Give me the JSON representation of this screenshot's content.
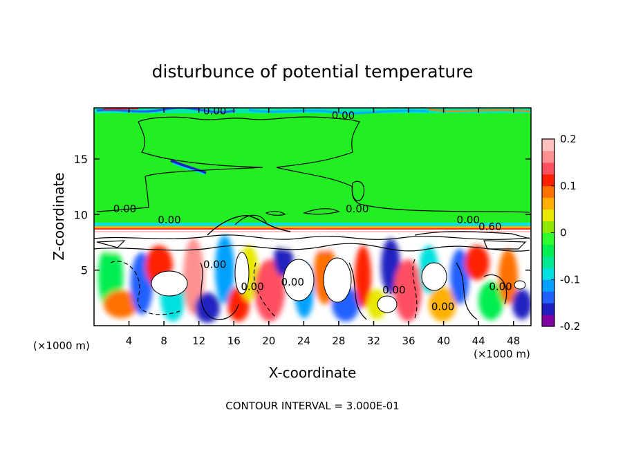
{
  "chart_data": {
    "type": "heatmap",
    "title": "disturbunce of potential temperature",
    "xlabel": "X-coordinate",
    "ylabel": "Z-coordinate",
    "x_unit": "(×1000 m)",
    "x_unit_right": "(×1000 m)",
    "footer": "CONTOUR INTERVAL = 3.000E-01",
    "xlim": [
      0,
      50
    ],
    "ylim": [
      0,
      19.6
    ],
    "x_ticks": [
      "4",
      "8",
      "12",
      "16",
      "20",
      "24",
      "28",
      "32",
      "36",
      "40",
      "44",
      "48"
    ],
    "y_ticks": [
      "5",
      "10",
      "15"
    ],
    "colorbar": {
      "min": -0.2,
      "max": 0.2,
      "tick_labels": [
        "0.2",
        "0.1",
        "0",
        "-0.1",
        "-0.2"
      ],
      "colors": [
        "#8000a0",
        "#2020c0",
        "#2060ff",
        "#00a0ff",
        "#00e0e0",
        "#00e890",
        "#00ee50",
        "#30ff30",
        "#90e800",
        "#e8e800",
        "#ffb000",
        "#ff7000",
        "#ff2000",
        "#ff5060",
        "#ff9090",
        "#ffc0c0"
      ]
    },
    "contour_labels": [
      {
        "text": "0.00",
        "x": 12.5,
        "z": 19.0
      },
      {
        "text": "0.00",
        "x": 27.2,
        "z": 18.6
      },
      {
        "text": "0.00",
        "x": 2.2,
        "z": 10.2
      },
      {
        "text": "0.00",
        "x": 28.8,
        "z": 10.2
      },
      {
        "text": "0.00",
        "x": 7.3,
        "z": 9.2
      },
      {
        "text": "0.00",
        "x": 41.5,
        "z": 9.2
      },
      {
        "text": "0.60",
        "x": 44.0,
        "z": 8.6
      },
      {
        "text": "0.00",
        "x": 12.5,
        "z": 5.2
      },
      {
        "text": "0.00",
        "x": 16.8,
        "z": 3.2
      },
      {
        "text": "0.00",
        "x": 21.4,
        "z": 3.6
      },
      {
        "text": "0.00",
        "x": 33.0,
        "z": 2.9
      },
      {
        "text": "0.00",
        "x": 38.6,
        "z": 1.4
      },
      {
        "text": "0.00",
        "x": 45.2,
        "z": 3.2
      }
    ],
    "fields": {
      "upper_layer": {
        "z_range": [
          9.3,
          19.6
        ],
        "value": 0.0
      },
      "lower_layer": {
        "z_range": [
          0,
          9.3
        ],
        "value_range": [
          -0.2,
          0.2
        ]
      }
    }
  }
}
